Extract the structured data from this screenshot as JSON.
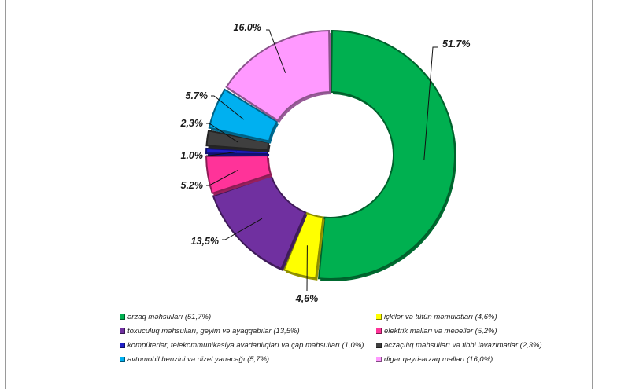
{
  "chart_data": {
    "type": "pie",
    "style": "donut-3d",
    "title": "",
    "slices": [
      {
        "name": "ərzaq məhsulları (51,7%)",
        "value": 51.7,
        "label": "51.7%",
        "color": "#00b050"
      },
      {
        "name": "içkilər və tütün məmulatları (4,6%)",
        "value": 4.6,
        "label": "4,6%",
        "color": "#ffff00"
      },
      {
        "name": "toxuculuq məhsulları, geyim və ayaqqabılar (13,5%)",
        "value": 13.5,
        "label": "13,5%",
        "color": "#7030a0"
      },
      {
        "name": "elektrik malları və mebellər (5,2%)",
        "value": 5.2,
        "label": "5.2%",
        "color": "#ff3399"
      },
      {
        "name": "kompüterlər, telekommunikasiya avadanlıqları və çap məhsulları (1,0%)",
        "value": 1.0,
        "label": "1.0%",
        "color": "#1f1fc8"
      },
      {
        "name": "əczaçılıq məhsulları və tibbi ləvazimatlar (2,3%)",
        "value": 2.3,
        "label": "2,3%",
        "color": "#3f3f3f"
      },
      {
        "name": "avtomobil benzini və dizel yanacağı (5,7%)",
        "value": 5.7,
        "label": "5.7%",
        "color": "#00b0f0"
      },
      {
        "name": "digər qeyri-ərzaq malları (16,0%)",
        "value": 16.0,
        "label": "16.0%",
        "color": "#ff99ff"
      }
    ],
    "legend_position": "bottom"
  }
}
